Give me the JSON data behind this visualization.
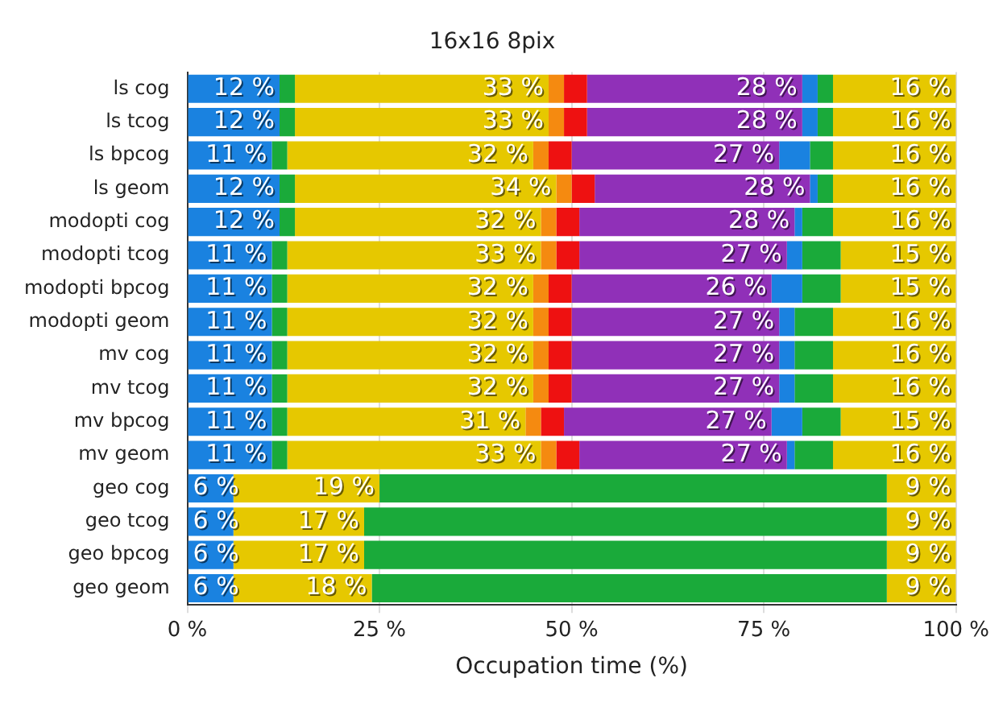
{
  "chart_data": {
    "type": "bar",
    "orientation": "horizontal",
    "stacked": true,
    "title": "16x16 8pix",
    "xlabel": "Occupation time (%)",
    "categories": [
      "ls cog",
      "ls tcog",
      "ls bpcog",
      "ls geom",
      "modopti cog",
      "modopti tcog",
      "modopti bpcog",
      "modopti geom",
      "mv cog",
      "mv tcog",
      "mv bpcog",
      "mv geom",
      "geo cog",
      "geo tcog",
      "geo bpcog",
      "geo geom"
    ],
    "xlim": [
      0,
      100
    ],
    "xticks": [
      {
        "value": 0,
        "label": "0 %"
      },
      {
        "value": 25,
        "label": "25 %"
      },
      {
        "value": 50,
        "label": "50 %"
      },
      {
        "value": 75,
        "label": "75 %"
      },
      {
        "value": 100,
        "label": "100 %"
      }
    ],
    "grid": "x",
    "legend": false,
    "series": [
      {
        "color": "#1a82e0",
        "values": [
          12,
          12,
          11,
          12,
          12,
          11,
          11,
          11,
          11,
          11,
          11,
          11,
          6,
          6,
          6,
          6
        ],
        "value_labels": [
          "12 %",
          "12 %",
          "11 %",
          "12 %",
          "12 %",
          "11 %",
          "11 %",
          "11 %",
          "11 %",
          "11 %",
          "11 %",
          "11 %",
          "6 %",
          "6 %",
          "6 %",
          "6 %"
        ]
      },
      {
        "color": "#1aaa3a",
        "values": [
          2,
          2,
          2,
          2,
          2,
          2,
          2,
          2,
          2,
          2,
          2,
          2,
          0,
          0,
          0,
          0
        ]
      },
      {
        "color": "#e6c800",
        "values": [
          33,
          33,
          32,
          34,
          32,
          33,
          32,
          32,
          32,
          32,
          31,
          33,
          19,
          17,
          17,
          18
        ],
        "value_labels": [
          "33 %",
          "33 %",
          "32 %",
          "34 %",
          "32 %",
          "33 %",
          "32 %",
          "32 %",
          "32 %",
          "32 %",
          "31 %",
          "33 %",
          "19 %",
          "17 %",
          "17 %",
          "18 %"
        ]
      },
      {
        "color": "#f58a10",
        "values": [
          2,
          2,
          2,
          2,
          2,
          2,
          2,
          2,
          2,
          2,
          2,
          2,
          0,
          0,
          0,
          0
        ]
      },
      {
        "color": "#ee1111",
        "values": [
          3,
          3,
          3,
          3,
          3,
          3,
          3,
          3,
          3,
          3,
          3,
          3,
          0,
          0,
          0,
          0
        ]
      },
      {
        "color": "#9030b8",
        "values": [
          28,
          28,
          27,
          28,
          28,
          27,
          26,
          27,
          27,
          27,
          27,
          27,
          0,
          0,
          0,
          0
        ],
        "value_labels": [
          "28 %",
          "28 %",
          "27 %",
          "28 %",
          "28 %",
          "27 %",
          "26 %",
          "27 %",
          "27 %",
          "27 %",
          "27 %",
          "27 %",
          null,
          null,
          null,
          null
        ]
      },
      {
        "color": "#1a82e0",
        "values": [
          2,
          2,
          4,
          1,
          1,
          2,
          4,
          2,
          2,
          2,
          4,
          1,
          0,
          0,
          0,
          0
        ]
      },
      {
        "color": "#1aaa3a",
        "values": [
          2,
          2,
          3,
          2,
          4,
          5,
          5,
          5,
          5,
          5,
          5,
          5,
          66,
          68,
          68,
          67
        ]
      },
      {
        "color": "#e6c800",
        "values": [
          16,
          16,
          16,
          16,
          16,
          15,
          15,
          16,
          16,
          16,
          15,
          16,
          9,
          9,
          9,
          9
        ],
        "value_labels": [
          "16 %",
          "16 %",
          "16 %",
          "16 %",
          "16 %",
          "15 %",
          "15 %",
          "16 %",
          "16 %",
          "16 %",
          "15 %",
          "16 %",
          "9 %",
          "9 %",
          "9 %",
          "9 %"
        ]
      }
    ]
  }
}
